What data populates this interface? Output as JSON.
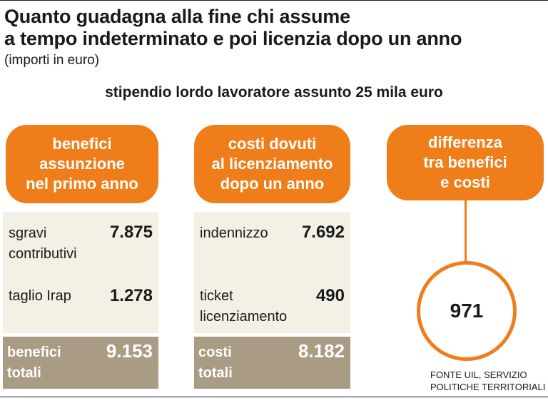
{
  "title": {
    "line1": "Quanto guadagna alla fine chi assume",
    "line2": "a tempo indeterminato e poi licenzia dopo un anno"
  },
  "subtitle": "(importi in euro)",
  "headline": "stipendio lordo lavoratore assunto 25 mila euro",
  "benefici": {
    "header": [
      "benefici",
      "assunzione",
      "nel primo anno"
    ],
    "items": [
      {
        "label": [
          "sgravi",
          "contributivi"
        ],
        "value": "7.875"
      },
      {
        "label": [
          "taglio Irap"
        ],
        "value": "1.278"
      }
    ],
    "total_label": [
      "benefici",
      "totali"
    ],
    "total_value": "9.153"
  },
  "costi": {
    "header": [
      "costi dovuti",
      "al licenziamento",
      "dopo un anno"
    ],
    "items": [
      {
        "label": [
          "indennizzo"
        ],
        "value": "7.692"
      },
      {
        "label": [
          "ticket",
          "licenziamento"
        ],
        "value": "490"
      }
    ],
    "total_label": [
      "costi",
      "totali"
    ],
    "total_value": "8.182"
  },
  "differenza": {
    "header": [
      "differenza",
      "tra benefici",
      "e costi"
    ],
    "value": "971"
  },
  "source": [
    "FONTE UIL, SERVIZIO",
    "POLITICHE TERRITORIALI"
  ],
  "colors": {
    "accent": "#ef7d1a",
    "panel": "#f3f1e6",
    "total": "#a99b84"
  }
}
